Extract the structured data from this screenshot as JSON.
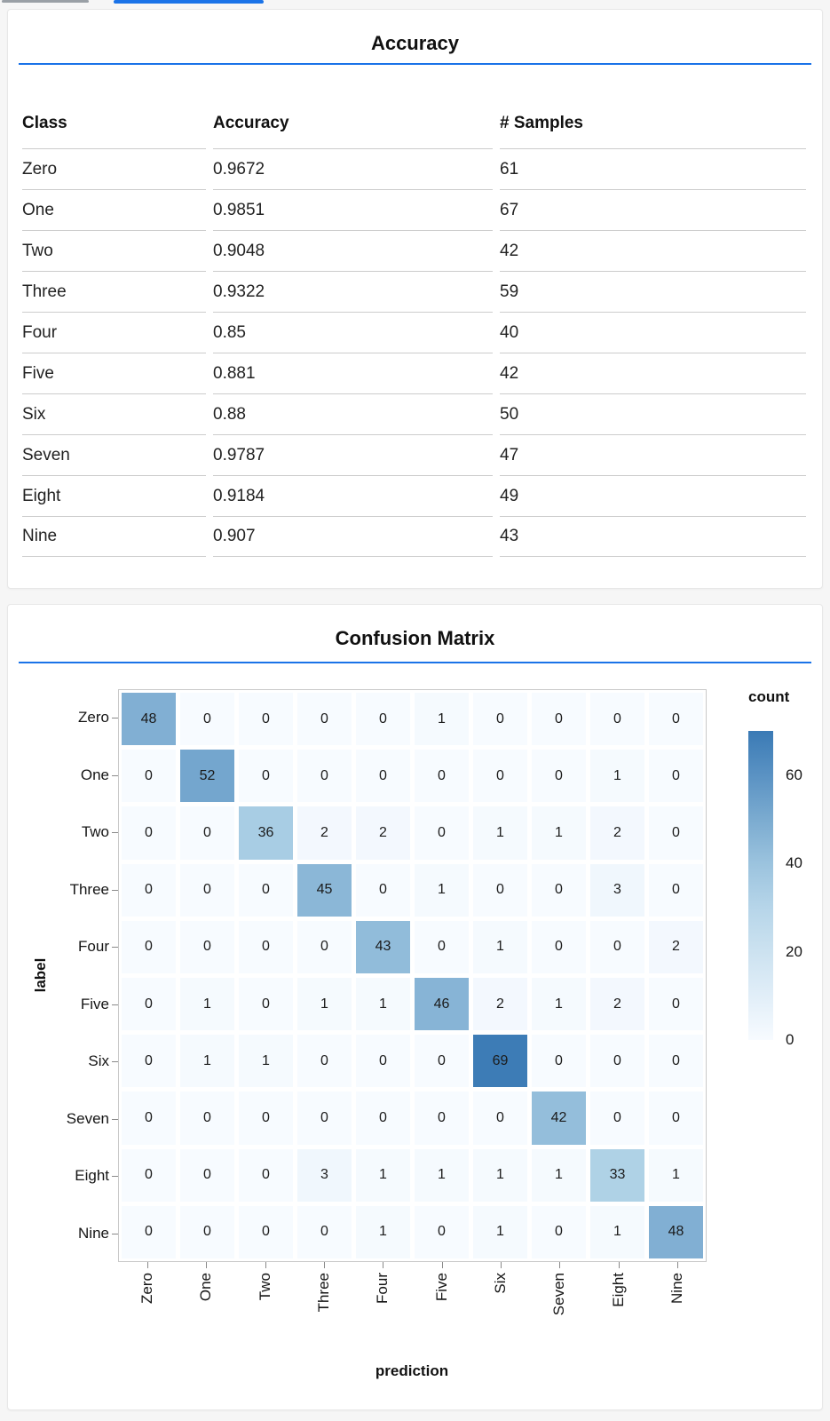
{
  "top_tabs": {
    "gray_indicator_color": "#9aa0a6",
    "blue_indicator_color": "#1a73e8"
  },
  "accent_color": "#1a73e8",
  "accuracy_card": {
    "title": "Accuracy"
  },
  "confusion_card": {
    "title": "Confusion Matrix"
  },
  "chart_data": [
    {
      "type": "table",
      "title": "Accuracy",
      "columns": [
        "Class",
        "Accuracy",
        "# Samples"
      ],
      "rows": [
        [
          "Zero",
          "0.9672",
          "61"
        ],
        [
          "One",
          "0.9851",
          "67"
        ],
        [
          "Two",
          "0.9048",
          "42"
        ],
        [
          "Three",
          "0.9322",
          "59"
        ],
        [
          "Four",
          "0.85",
          "40"
        ],
        [
          "Five",
          "0.881",
          "42"
        ],
        [
          "Six",
          "0.88",
          "50"
        ],
        [
          "Seven",
          "0.9787",
          "47"
        ],
        [
          "Eight",
          "0.9184",
          "49"
        ],
        [
          "Nine",
          "0.907",
          "43"
        ]
      ]
    },
    {
      "type": "heatmap",
      "title": "Confusion Matrix",
      "xlabel": "prediction",
      "ylabel": "label",
      "categories": [
        "Zero",
        "One",
        "Two",
        "Three",
        "Four",
        "Five",
        "Six",
        "Seven",
        "Eight",
        "Nine"
      ],
      "matrix": [
        [
          48,
          0,
          0,
          0,
          0,
          1,
          0,
          0,
          0,
          0
        ],
        [
          0,
          52,
          0,
          0,
          0,
          0,
          0,
          0,
          1,
          0
        ],
        [
          0,
          0,
          36,
          2,
          2,
          0,
          1,
          1,
          2,
          0
        ],
        [
          0,
          0,
          0,
          45,
          0,
          1,
          0,
          0,
          3,
          0
        ],
        [
          0,
          0,
          0,
          0,
          43,
          0,
          1,
          0,
          0,
          2
        ],
        [
          0,
          1,
          0,
          1,
          1,
          46,
          2,
          1,
          2,
          0
        ],
        [
          0,
          1,
          1,
          0,
          0,
          0,
          69,
          0,
          0,
          0
        ],
        [
          0,
          0,
          0,
          0,
          0,
          0,
          0,
          42,
          0,
          0
        ],
        [
          0,
          0,
          0,
          3,
          1,
          1,
          1,
          1,
          33,
          1
        ],
        [
          0,
          0,
          0,
          0,
          1,
          0,
          1,
          0,
          1,
          48
        ]
      ],
      "legend": {
        "title": "count",
        "ticks": [
          0,
          20,
          40,
          60
        ],
        "domain": [
          0,
          70
        ]
      },
      "color_scheme": [
        "#f7fbff",
        "#abcfe5",
        "#3a7ab5"
      ],
      "grid": false,
      "legend_position": "right"
    }
  ]
}
